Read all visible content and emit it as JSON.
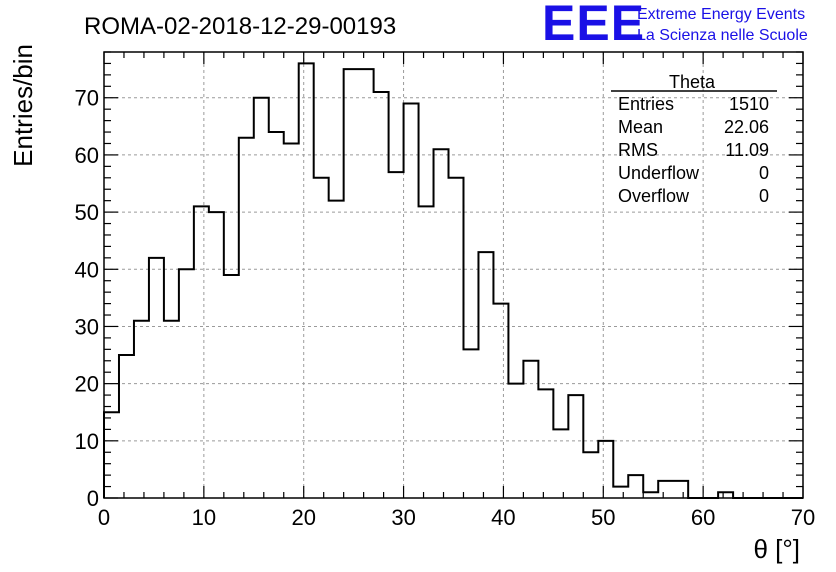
{
  "header": {
    "title": "ROMA-02-2018-12-29-00193",
    "logo": "EEE",
    "logo_line1": "Extreme Energy Events",
    "logo_line2": "La Scienza nelle Scuole",
    "logo_color": "#1a10e6"
  },
  "stats": {
    "name": "Theta",
    "rows": [
      {
        "label": "Entries",
        "value": "1510"
      },
      {
        "label": "Mean",
        "value": "22.06"
      },
      {
        "label": "RMS",
        "value": "11.09"
      },
      {
        "label": "Underflow",
        "value": "0"
      },
      {
        "label": "Overflow",
        "value": "0"
      }
    ]
  },
  "chart_data": {
    "type": "bar",
    "style": "step-histogram",
    "title": "ROMA-02-2018-12-29-00193",
    "xlabel": "θ [°]",
    "ylabel": "Entries/bin",
    "xlim": [
      0,
      70
    ],
    "ylim": [
      0,
      78
    ],
    "bin_width": 1.5,
    "x_ticks": [
      0,
      10,
      20,
      30,
      40,
      50,
      60,
      70
    ],
    "y_ticks": [
      0,
      10,
      20,
      30,
      40,
      50,
      60,
      70
    ],
    "grid": true,
    "legend": "top-right",
    "series": [
      {
        "values": [
          15,
          25,
          31,
          42,
          31,
          40,
          51,
          50,
          39,
          63,
          70,
          64,
          62,
          76,
          56,
          52,
          75,
          75,
          71,
          57,
          69,
          51,
          61,
          56,
          26,
          43,
          34,
          20,
          24,
          19,
          12,
          18,
          8,
          10,
          2,
          4,
          1,
          3,
          3,
          0,
          0,
          1,
          0,
          0,
          0,
          0,
          0
        ]
      }
    ]
  }
}
